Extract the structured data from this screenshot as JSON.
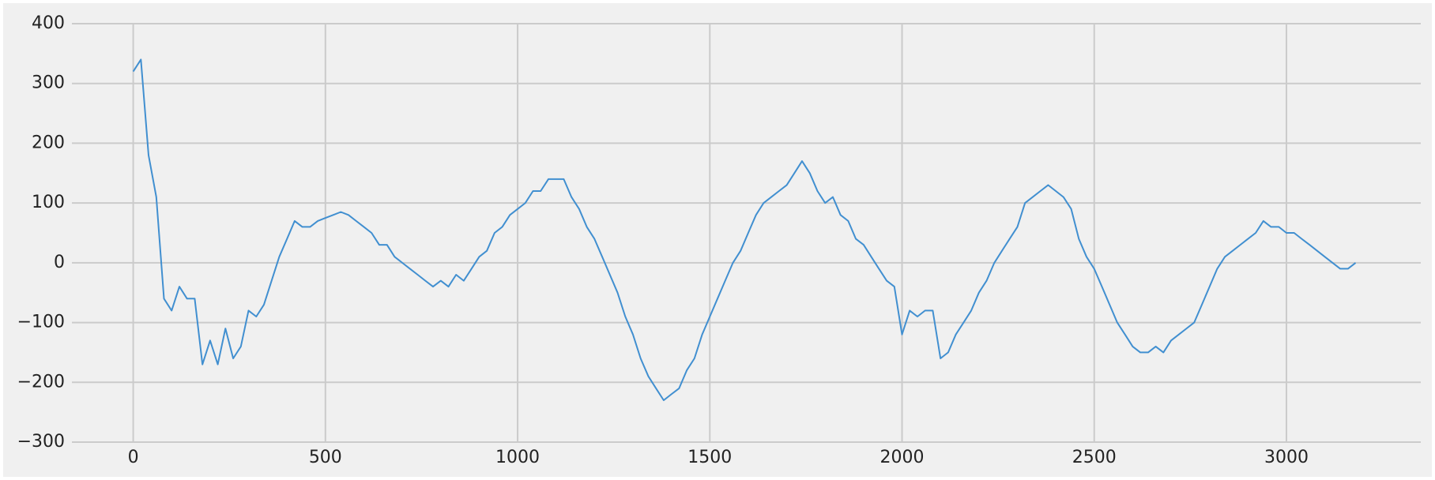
{
  "chart_data": {
    "type": "line",
    "color": "#418fd0",
    "grid": true,
    "xlim": [
      -159.5,
      3349.5
    ],
    "ylim": [
      -300,
      400
    ],
    "xticks": [
      0,
      500,
      1000,
      1500,
      2000,
      2500,
      3000
    ],
    "yticks": [
      {
        "value": -300,
        "label": "−300"
      },
      {
        "value": -200,
        "label": "−200"
      },
      {
        "value": -100,
        "label": "−100"
      },
      0,
      100,
      200,
      300,
      400
    ],
    "x": [
      0,
      20,
      40,
      60,
      80,
      100,
      120,
      140,
      160,
      180,
      200,
      220,
      240,
      260,
      280,
      300,
      320,
      340,
      360,
      380,
      400,
      420,
      440,
      460,
      480,
      500,
      520,
      540,
      560,
      580,
      600,
      620,
      640,
      660,
      680,
      700,
      720,
      740,
      760,
      780,
      800,
      820,
      840,
      860,
      880,
      900,
      920,
      940,
      960,
      980,
      1000,
      1020,
      1040,
      1060,
      1080,
      1100,
      1120,
      1140,
      1160,
      1180,
      1200,
      1220,
      1240,
      1260,
      1280,
      1300,
      1320,
      1340,
      1360,
      1380,
      1400,
      1420,
      1440,
      1460,
      1480,
      1500,
      1520,
      1540,
      1560,
      1580,
      1600,
      1620,
      1640,
      1660,
      1680,
      1700,
      1720,
      1740,
      1760,
      1780,
      1800,
      1820,
      1840,
      1860,
      1880,
      1900,
      1920,
      1940,
      1960,
      1980,
      2000,
      2020,
      2040,
      2060,
      2080,
      2100,
      2120,
      2140,
      2160,
      2180,
      2200,
      2220,
      2240,
      2260,
      2280,
      2300,
      2320,
      2340,
      2360,
      2380,
      2400,
      2420,
      2440,
      2460,
      2480,
      2500,
      2520,
      2540,
      2560,
      2580,
      2600,
      2620,
      2640,
      2660,
      2680,
      2700,
      2720,
      2740,
      2760,
      2780,
      2800,
      2820,
      2840,
      2860,
      2880,
      2900,
      2920,
      2940,
      2960,
      2980,
      3000,
      3020,
      3040,
      3060,
      3080,
      3100,
      3120,
      3140,
      3160,
      3180
    ],
    "values": [
      320,
      340,
      180,
      110,
      -60,
      -80,
      -40,
      -60,
      -60,
      -170,
      -130,
      -170,
      -110,
      -160,
      -140,
      -80,
      -90,
      -70,
      -30,
      10,
      40,
      70,
      60,
      60,
      70,
      75,
      80,
      85,
      80,
      70,
      60,
      50,
      30,
      30,
      10,
      0,
      -10,
      -20,
      -30,
      -40,
      -30,
      -40,
      -20,
      -30,
      -10,
      10,
      20,
      50,
      60,
      80,
      90,
      100,
      120,
      120,
      140,
      140,
      140,
      110,
      90,
      60,
      40,
      10,
      -20,
      -50,
      -90,
      -120,
      -160,
      -190,
      -210,
      -230,
      -220,
      -210,
      -180,
      -160,
      -120,
      -90,
      -60,
      -30,
      0,
      20,
      50,
      80,
      100,
      110,
      120,
      130,
      150,
      170,
      150,
      120,
      100,
      110,
      80,
      70,
      40,
      30,
      10,
      -10,
      -30,
      -40,
      -120,
      -80,
      -90,
      -80,
      -80,
      -160,
      -150,
      -120,
      -100,
      -80,
      -50,
      -30,
      0,
      20,
      40,
      60,
      100,
      110,
      120,
      130,
      120,
      110,
      90,
      40,
      10,
      -10,
      -40,
      -70,
      -100,
      -120,
      -140,
      -150,
      -150,
      -140,
      -150,
      -130,
      -120,
      -110,
      -100,
      -70,
      -40,
      -10,
      10,
      20,
      30,
      40,
      50,
      70,
      60,
      60,
      50,
      50,
      40,
      30,
      20,
      10,
      0,
      -10,
      -10,
      0
    ]
  }
}
